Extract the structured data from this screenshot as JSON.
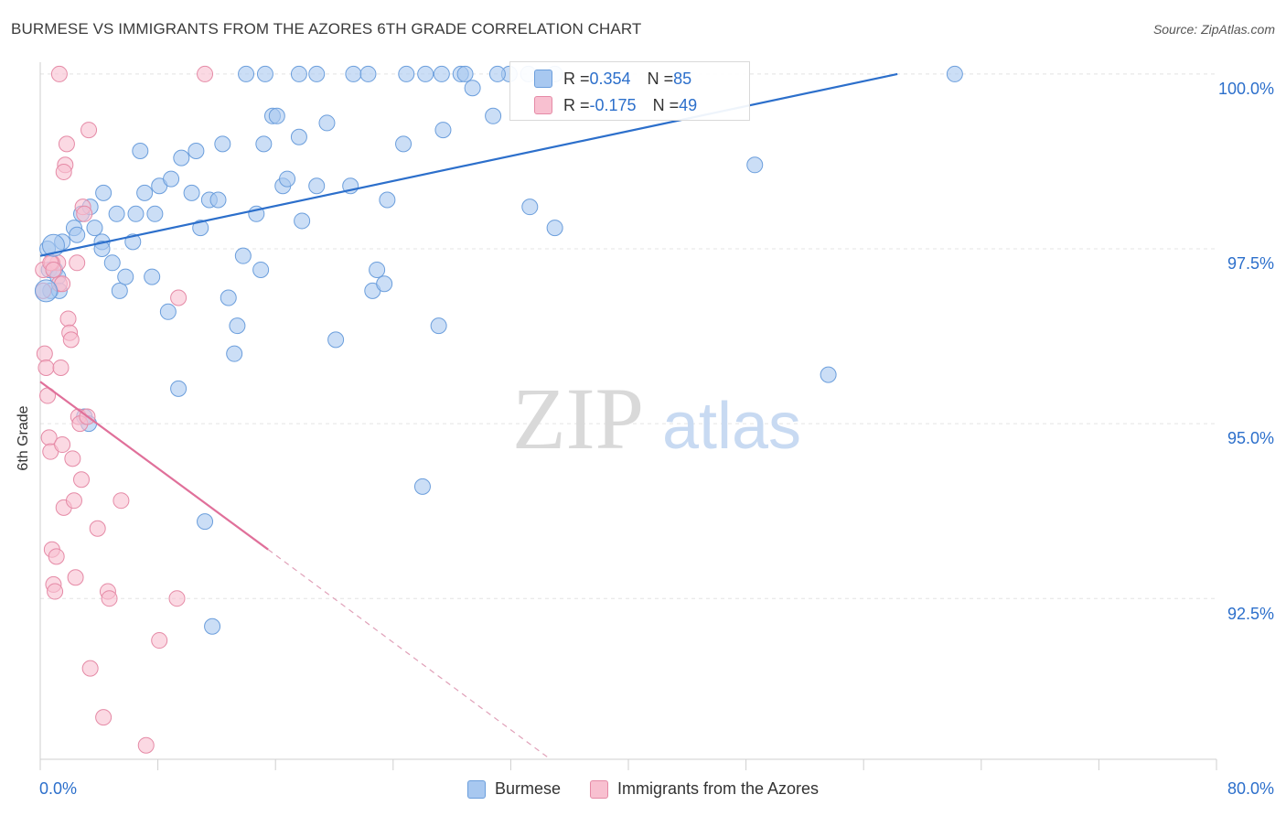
{
  "header": {
    "title": "BURMESE VS IMMIGRANTS FROM THE AZORES 6TH GRADE CORRELATION CHART",
    "source": "Source: ZipAtlas.com"
  },
  "watermark": {
    "zip": "ZIP",
    "atlas": "atlas"
  },
  "legend_top": {
    "rows": [
      {
        "r_label": "R = ",
        "r_value": "0.354",
        "n_label": "N = ",
        "n_value": "85",
        "color": "#a8c8f0",
        "border": "#6b9edc"
      },
      {
        "r_label": "R = ",
        "r_value": "-0.175",
        "n_label": "N = ",
        "n_value": "49",
        "color": "#f8c0d0",
        "border": "#e58aa6"
      }
    ]
  },
  "legend_bottom": [
    {
      "label": "Burmese",
      "color": "#a8c8f0",
      "border": "#6b9edc"
    },
    {
      "label": "Immigrants from the Azores",
      "color": "#f8c0d0",
      "border": "#e58aa6"
    }
  ],
  "axes": {
    "x_tick_left": "0.0%",
    "x_tick_right": "80.0%",
    "y_label": "6th Grade",
    "y_ticks": [
      "100.0%",
      "97.5%",
      "95.0%",
      "92.5%"
    ]
  },
  "chart_data": {
    "type": "scatter",
    "title": "BURMESE VS IMMIGRANTS FROM THE AZORES 6TH GRADE CORRELATION CHART",
    "xlabel": "",
    "ylabel": "6th Grade",
    "xlim": [
      0,
      80
    ],
    "ylim": [
      90.2,
      100.3
    ],
    "x_ticks": [
      0,
      80
    ],
    "y_ticks": [
      92.5,
      95.0,
      97.5,
      100.0
    ],
    "grid": true,
    "legend": "bottom",
    "series": [
      {
        "name": "Burmese",
        "color": "#a8c8f0",
        "stroke": "#6b9edc",
        "r": 0.354,
        "n": 85,
        "trend": {
          "x": [
            0,
            58.3
          ],
          "y": [
            97.4,
            100.0
          ]
        },
        "points": [
          [
            0.5,
            97.5
          ],
          [
            0.6,
            97.2
          ],
          [
            0.7,
            96.9
          ],
          [
            1.0,
            97.2
          ],
          [
            1.2,
            97.1
          ],
          [
            1.3,
            96.9
          ],
          [
            1.5,
            97.6
          ],
          [
            2.3,
            97.8
          ],
          [
            2.5,
            97.7
          ],
          [
            2.8,
            98.0
          ],
          [
            3.4,
            98.1
          ],
          [
            3.7,
            97.8
          ],
          [
            4.3,
            98.3
          ],
          [
            4.2,
            97.6
          ],
          [
            4.2,
            97.5
          ],
          [
            4.9,
            97.3
          ],
          [
            5.2,
            98.0
          ],
          [
            5.4,
            96.9
          ],
          [
            5.8,
            97.1
          ],
          [
            6.3,
            97.6
          ],
          [
            6.5,
            98.0
          ],
          [
            6.8,
            98.9
          ],
          [
            7.1,
            98.3
          ],
          [
            7.6,
            97.1
          ],
          [
            7.8,
            98.0
          ],
          [
            8.1,
            98.4
          ],
          [
            8.7,
            96.6
          ],
          [
            8.9,
            98.5
          ],
          [
            9.4,
            95.5
          ],
          [
            9.6,
            98.8
          ],
          [
            10.3,
            98.3
          ],
          [
            10.6,
            98.9
          ],
          [
            10.9,
            97.8
          ],
          [
            11.5,
            98.2
          ],
          [
            12.1,
            98.2
          ],
          [
            12.4,
            99.0
          ],
          [
            12.8,
            96.8
          ],
          [
            13.2,
            96.0
          ],
          [
            13.4,
            96.4
          ],
          [
            13.8,
            97.4
          ],
          [
            14.7,
            98.0
          ],
          [
            15.0,
            97.2
          ],
          [
            15.2,
            99.0
          ],
          [
            15.8,
            99.4
          ],
          [
            16.1,
            99.4
          ],
          [
            16.5,
            98.4
          ],
          [
            16.8,
            98.5
          ],
          [
            17.6,
            99.1
          ],
          [
            17.8,
            97.9
          ],
          [
            18.8,
            98.4
          ],
          [
            19.5,
            99.3
          ],
          [
            20.1,
            96.2
          ],
          [
            21.1,
            98.4
          ],
          [
            22.6,
            96.9
          ],
          [
            23.4,
            97.0
          ],
          [
            23.6,
            98.2
          ],
          [
            24.7,
            99.0
          ],
          [
            27.1,
            96.4
          ],
          [
            27.4,
            99.2
          ],
          [
            28.6,
            100.0
          ],
          [
            29.4,
            99.8
          ],
          [
            30.8,
            99.4
          ],
          [
            31.9,
            100.0
          ],
          [
            33.3,
            98.1
          ],
          [
            35.0,
            97.8
          ],
          [
            48.6,
            98.7
          ],
          [
            53.6,
            95.7
          ],
          [
            62.2,
            100.0
          ],
          [
            14.0,
            100.0
          ],
          [
            15.3,
            100.0
          ],
          [
            17.6,
            100.0
          ],
          [
            18.8,
            100.0
          ],
          [
            21.3,
            100.0
          ],
          [
            22.3,
            100.0
          ],
          [
            24.9,
            100.0
          ],
          [
            26.2,
            100.0
          ],
          [
            27.3,
            100.0
          ],
          [
            28.9,
            100.0
          ],
          [
            31.1,
            100.0
          ],
          [
            33.2,
            100.0
          ],
          [
            35.0,
            100.0
          ],
          [
            26.0,
            94.1
          ],
          [
            11.2,
            93.6
          ],
          [
            11.7,
            92.1
          ],
          [
            3.0,
            95.1
          ],
          [
            3.3,
            95.0
          ],
          [
            22.9,
            97.2
          ]
        ]
      },
      {
        "name": "Immigrants from the Azores",
        "color": "#f8c0d0",
        "stroke": "#e58aa6",
        "r": -0.175,
        "n": 49,
        "trend": {
          "x": [
            0,
            15.5
          ],
          "y": [
            95.6,
            93.2
          ]
        },
        "trend_dashed": {
          "x": [
            15.5,
            34.7
          ],
          "y": [
            93.2,
            90.2
          ]
        },
        "points": [
          [
            0.2,
            96.9
          ],
          [
            0.2,
            97.2
          ],
          [
            0.3,
            96.0
          ],
          [
            0.4,
            95.8
          ],
          [
            0.5,
            95.4
          ],
          [
            0.6,
            94.8
          ],
          [
            0.7,
            94.6
          ],
          [
            0.8,
            93.2
          ],
          [
            0.9,
            92.7
          ],
          [
            1.0,
            92.6
          ],
          [
            1.1,
            93.1
          ],
          [
            1.2,
            97.3
          ],
          [
            1.3,
            97.0
          ],
          [
            1.4,
            95.8
          ],
          [
            1.5,
            94.7
          ],
          [
            1.6,
            93.8
          ],
          [
            1.7,
            98.7
          ],
          [
            1.8,
            99.0
          ],
          [
            1.9,
            96.5
          ],
          [
            2.0,
            96.3
          ],
          [
            2.1,
            96.2
          ],
          [
            2.2,
            94.5
          ],
          [
            2.3,
            93.9
          ],
          [
            2.4,
            92.8
          ],
          [
            2.5,
            97.3
          ],
          [
            2.6,
            95.1
          ],
          [
            2.7,
            95.0
          ],
          [
            2.8,
            94.2
          ],
          [
            2.9,
            98.1
          ],
          [
            3.0,
            98.0
          ],
          [
            3.2,
            95.1
          ],
          [
            3.3,
            99.2
          ],
          [
            3.4,
            91.5
          ],
          [
            3.9,
            93.5
          ],
          [
            4.3,
            90.8
          ],
          [
            4.6,
            92.6
          ],
          [
            4.7,
            92.5
          ],
          [
            5.5,
            93.9
          ],
          [
            7.2,
            90.4
          ],
          [
            8.1,
            91.9
          ],
          [
            9.3,
            92.5
          ],
          [
            9.4,
            96.8
          ],
          [
            11.2,
            100.0
          ],
          [
            1.3,
            100.0
          ],
          [
            0.8,
            97.3
          ],
          [
            0.7,
            97.3
          ],
          [
            1.5,
            97.0
          ],
          [
            0.9,
            97.2
          ],
          [
            1.6,
            98.6
          ]
        ]
      }
    ]
  }
}
